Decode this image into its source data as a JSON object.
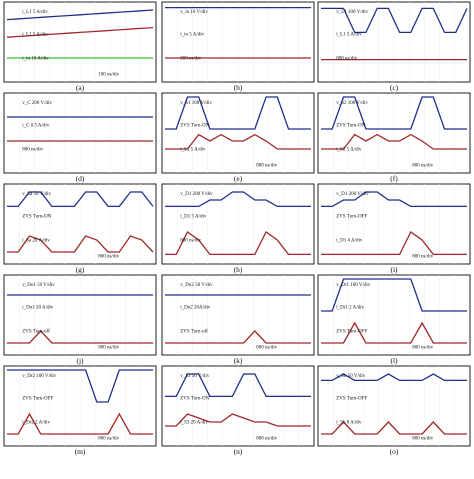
{
  "figure": {
    "panels": [
      {
        "id": "a",
        "caption": "(a)",
        "labels": [
          "i_L1  5 A/div",
          "i_L1  5 A/div",
          "i_in  10 A/div",
          "100 ns/div"
        ],
        "chart_data": {
          "type": "line",
          "series": [
            {
              "name": "i_L1",
              "color": "#1f2f8c",
              "values": [
                0.78,
                0.79,
                0.8,
                0.81,
                0.82,
                0.83,
                0.84,
                0.85,
                0.86,
                0.87,
                0.88,
                0.89,
                0.9
              ]
            },
            {
              "name": "i_L1",
              "color": "#a0282a",
              "values": [
                0.56,
                0.57,
                0.58,
                0.59,
                0.6,
                0.61,
                0.62,
                0.63,
                0.64,
                0.65,
                0.66,
                0.67,
                0.68
              ]
            },
            {
              "name": "i_in",
              "color": "#3dbb3a",
              "values": [
                0.3,
                0.3,
                0.3,
                0.3,
                0.3,
                0.3,
                0.3,
                0.3,
                0.3,
                0.3,
                0.3,
                0.3,
                0.3
              ]
            }
          ]
        }
      },
      {
        "id": "b",
        "caption": "(b)",
        "labels": [
          "v_in  10 V/div",
          "i_in  5 A/div",
          "800 ns/div"
        ],
        "chart_data": {
          "type": "line",
          "series": [
            {
              "name": "v_in",
              "color": "#1f2f8c",
              "values": [
                0.93,
                0.93,
                0.93,
                0.93,
                0.93,
                0.93,
                0.93,
                0.93,
                0.93,
                0.93,
                0.93,
                0.93,
                0.93
              ]
            },
            {
              "name": "i_in",
              "color": "#a0282a",
              "values": [
                0.3,
                0.3,
                0.3,
                0.3,
                0.3,
                0.3,
                0.3,
                0.3,
                0.3,
                0.3,
                0.3,
                0.3,
                0.3
              ]
            }
          ]
        }
      },
      {
        "id": "c",
        "caption": "(c)",
        "labels": [
          "v_L1  100 V/div",
          "i_L1  5 A/div",
          "800 ns/div"
        ],
        "chart_data": {
          "type": "line",
          "series": [
            {
              "name": "v_L1",
              "color": "#1f2f8c",
              "values": [
                0.92,
                0.92,
                0.92,
                0.62,
                0.62,
                0.92,
                0.92,
                0.62,
                0.62,
                0.92,
                0.92,
                0.62,
                0.62,
                0.92
              ]
            },
            {
              "name": "i_L1",
              "color": "#a0282a",
              "values": [
                0.28,
                0.28,
                0.28,
                0.28,
                0.28,
                0.28,
                0.28,
                0.28,
                0.28,
                0.28,
                0.28,
                0.28,
                0.28,
                0.28
              ]
            }
          ]
        }
      },
      {
        "id": "d",
        "caption": "(d)",
        "labels": [
          "v_C  200 V/div",
          "i_C  0.5 A/div",
          "800 ns/div"
        ],
        "chart_data": {
          "type": "line",
          "series": [
            {
              "name": "v_C",
              "color": "#1f2f8c",
              "values": [
                0.7,
                0.7,
                0.7,
                0.7,
                0.7,
                0.7,
                0.7,
                0.7,
                0.7,
                0.7,
                0.7,
                0.7,
                0.7
              ]
            },
            {
              "name": "i_C",
              "color": "#a0282a",
              "values": [
                0.4,
                0.4,
                0.4,
                0.4,
                0.4,
                0.4,
                0.4,
                0.4,
                0.4,
                0.4,
                0.4,
                0.4,
                0.4
              ]
            }
          ]
        }
      },
      {
        "id": "e",
        "caption": "(e)",
        "labels": [
          "v_S1  100 V/div",
          "ZVS Turn-ON",
          "i_S1  5 A/div",
          "800 ns/div"
        ],
        "chart_data": {
          "type": "line",
          "series": [
            {
              "name": "v_S1",
              "color": "#1f2f8c",
              "values": [
                0.55,
                0.55,
                0.95,
                0.95,
                0.55,
                0.55,
                0.55,
                0.55,
                0.55,
                0.95,
                0.95,
                0.55,
                0.55,
                0.55
              ]
            },
            {
              "name": "i_S1",
              "color": "#a0282a",
              "values": [
                0.3,
                0.3,
                0.3,
                0.48,
                0.4,
                0.48,
                0.4,
                0.4,
                0.48,
                0.4,
                0.3,
                0.3,
                0.3,
                0.3
              ]
            }
          ]
        }
      },
      {
        "id": "f",
        "caption": "(f)",
        "labels": [
          "v_S2  100 V/div",
          "ZVS Turn-ON",
          "i_S2  5 A/div",
          "800 ns/div"
        ],
        "chart_data": {
          "type": "line",
          "series": [
            {
              "name": "v_S2",
              "color": "#1f2f8c",
              "values": [
                0.55,
                0.55,
                0.95,
                0.95,
                0.55,
                0.55,
                0.55,
                0.55,
                0.55,
                0.95,
                0.95,
                0.55,
                0.55,
                0.55
              ]
            },
            {
              "name": "i_S2",
              "color": "#a0282a",
              "values": [
                0.3,
                0.3,
                0.3,
                0.48,
                0.4,
                0.48,
                0.4,
                0.4,
                0.48,
                0.4,
                0.3,
                0.3,
                0.3,
                0.3
              ]
            }
          ]
        }
      },
      {
        "id": "g",
        "caption": "(g)",
        "labels": [
          "v_Sa  50 V/div",
          "ZVS Turn-ON",
          "i_Sa  20 A/div",
          "800 ns/div"
        ],
        "chart_data": {
          "type": "line",
          "series": [
            {
              "name": "v_Sa",
              "color": "#1f2f8c",
              "values": [
                0.72,
                0.72,
                0.9,
                0.9,
                0.72,
                0.72,
                0.72,
                0.9,
                0.9,
                0.72,
                0.72,
                0.9,
                0.9,
                0.72
              ]
            },
            {
              "name": "i_Sa",
              "color": "#a0282a",
              "values": [
                0.15,
                0.15,
                0.35,
                0.3,
                0.15,
                0.15,
                0.15,
                0.35,
                0.3,
                0.15,
                0.15,
                0.35,
                0.3,
                0.15
              ]
            }
          ]
        }
      },
      {
        "id": "h",
        "caption": "(h)",
        "labels": [
          "v_D1  200 V/div",
          "i_D1  5 A/div",
          "800 ns/div"
        ],
        "chart_data": {
          "type": "line",
          "series": [
            {
              "name": "v_D1",
              "color": "#1f2f8c",
              "values": [
                0.72,
                0.72,
                0.72,
                0.72,
                0.8,
                0.8,
                0.9,
                0.9,
                0.8,
                0.8,
                0.72,
                0.72,
                0.72,
                0.72
              ]
            },
            {
              "name": "i_D1",
              "color": "#a0282a",
              "values": [
                0.12,
                0.12,
                0.4,
                0.3,
                0.12,
                0.12,
                0.12,
                0.12,
                0.12,
                0.4,
                0.3,
                0.12,
                0.12,
                0.12
              ]
            }
          ]
        }
      },
      {
        "id": "i",
        "caption": "(i)",
        "labels": [
          "v_D1  200 V/div",
          "ZVS Turn-OFF",
          "i_D1  4 A/div",
          "800 ns/div"
        ],
        "chart_data": {
          "type": "line",
          "series": [
            {
              "name": "v_D1",
              "color": "#1f2f8c",
              "values": [
                0.72,
                0.72,
                0.8,
                0.8,
                0.9,
                0.9,
                0.8,
                0.8,
                0.72,
                0.72,
                0.72,
                0.72,
                0.72,
                0.72
              ]
            },
            {
              "name": "i_D1",
              "color": "#a0282a",
              "values": [
                0.12,
                0.12,
                0.12,
                0.12,
                0.12,
                0.12,
                0.12,
                0.12,
                0.4,
                0.3,
                0.12,
                0.12,
                0.12,
                0.12
              ]
            }
          ]
        }
      },
      {
        "id": "j",
        "caption": "(j)",
        "labels": [
          "v_Do1  50 V/div",
          "i_Do1  20 A/div",
          "ZVS Turn-off",
          "800 ns/div"
        ],
        "chart_data": {
          "type": "line",
          "series": [
            {
              "name": "v_Do1",
              "color": "#1f2f8c",
              "values": [
                0.75,
                0.75,
                0.75,
                0.75,
                0.75,
                0.75,
                0.75,
                0.75,
                0.75,
                0.75,
                0.75,
                0.75,
                0.75,
                0.75
              ]
            },
            {
              "name": "i_Do1",
              "color": "#a0282a",
              "values": [
                0.15,
                0.15,
                0.15,
                0.3,
                0.15,
                0.15,
                0.15,
                0.15,
                0.15,
                0.15,
                0.15,
                0.15,
                0.15,
                0.15
              ]
            }
          ]
        }
      },
      {
        "id": "k",
        "caption": "(k)",
        "labels": [
          "v_Do2  50 V/div",
          "i_Do2  20A/div",
          "ZVS Turn-off",
          "800 ns/div"
        ],
        "chart_data": {
          "type": "line",
          "series": [
            {
              "name": "v_Do2",
              "color": "#1f2f8c",
              "values": [
                0.75,
                0.75,
                0.75,
                0.75,
                0.75,
                0.75,
                0.75,
                0.75,
                0.75,
                0.75,
                0.75,
                0.75,
                0.75,
                0.75
              ]
            },
            {
              "name": "i_Do2",
              "color": "#a0282a",
              "values": [
                0.15,
                0.15,
                0.15,
                0.15,
                0.15,
                0.15,
                0.15,
                0.15,
                0.3,
                0.15,
                0.15,
                0.15,
                0.15,
                0.15
              ]
            }
          ]
        }
      },
      {
        "id": "l",
        "caption": "(l)",
        "labels": [
          "v_Dr1  100 V/div",
          "i_Dr1  2 A/div",
          "ZVS Turn-OFF",
          "800 ns/div"
        ],
        "chart_data": {
          "type": "line",
          "series": [
            {
              "name": "v_Dr1",
              "color": "#1f2f8c",
              "values": [
                0.55,
                0.55,
                0.95,
                0.95,
                0.95,
                0.95,
                0.95,
                0.95,
                0.95,
                0.55,
                0.55,
                0.55,
                0.55,
                0.55
              ]
            },
            {
              "name": "i_Dr1",
              "color": "#a0282a",
              "values": [
                0.15,
                0.15,
                0.15,
                0.4,
                0.15,
                0.15,
                0.15,
                0.15,
                0.15,
                0.4,
                0.15,
                0.15,
                0.15,
                0.15
              ]
            }
          ]
        }
      },
      {
        "id": "m",
        "caption": "(m)",
        "labels": [
          "v_Dr2  100 V/div",
          "ZVS Turn-OFF",
          "i_Dr2  2 A/div",
          "800 ns/div"
        ],
        "chart_data": {
          "type": "line",
          "series": [
            {
              "name": "v_Dr2",
              "color": "#1f2f8c",
              "values": [
                0.95,
                0.95,
                0.95,
                0.95,
                0.95,
                0.95,
                0.95,
                0.95,
                0.55,
                0.55,
                0.95,
                0.95,
                0.95,
                0.95
              ]
            },
            {
              "name": "i_Dr2",
              "color": "#a0282a",
              "values": [
                0.15,
                0.15,
                0.4,
                0.15,
                0.15,
                0.15,
                0.15,
                0.15,
                0.15,
                0.15,
                0.4,
                0.15,
                0.15,
                0.15
              ]
            }
          ]
        }
      },
      {
        "id": "n",
        "caption": "(n)",
        "labels": [
          "v_S3  50 V/div",
          "ZVS Turn-ON",
          "i_S3  20 A/div",
          "800 ns/div"
        ],
        "chart_data": {
          "type": "line",
          "series": [
            {
              "name": "v_S3",
              "color": "#1f2f8c",
              "values": [
                0.62,
                0.62,
                0.9,
                0.9,
                0.62,
                0.62,
                0.62,
                0.9,
                0.9,
                0.62,
                0.62,
                0.62,
                0.62,
                0.62
              ]
            },
            {
              "name": "i_S3",
              "color": "#a0282a",
              "values": [
                0.25,
                0.25,
                0.4,
                0.35,
                0.3,
                0.3,
                0.4,
                0.35,
                0.3,
                0.3,
                0.25,
                0.25,
                0.25,
                0.25
              ]
            }
          ]
        }
      },
      {
        "id": "o",
        "caption": "(o)",
        "labels": [
          "v_Sb  50 V/div",
          "ZVS Turn-OFF",
          "i_Sb  8 A/div",
          "800 ns/div"
        ],
        "chart_data": {
          "type": "line",
          "series": [
            {
              "name": "v_Sb",
              "color": "#1f2f8c",
              "values": [
                0.82,
                0.82,
                0.9,
                0.82,
                0.82,
                0.82,
                0.9,
                0.82,
                0.82,
                0.82,
                0.9,
                0.82,
                0.82,
                0.82
              ]
            },
            {
              "name": "i_Sb",
              "color": "#a0282a",
              "values": [
                0.15,
                0.15,
                0.3,
                0.15,
                0.15,
                0.15,
                0.3,
                0.15,
                0.15,
                0.15,
                0.3,
                0.15,
                0.15,
                0.15
              ]
            }
          ]
        }
      }
    ]
  }
}
